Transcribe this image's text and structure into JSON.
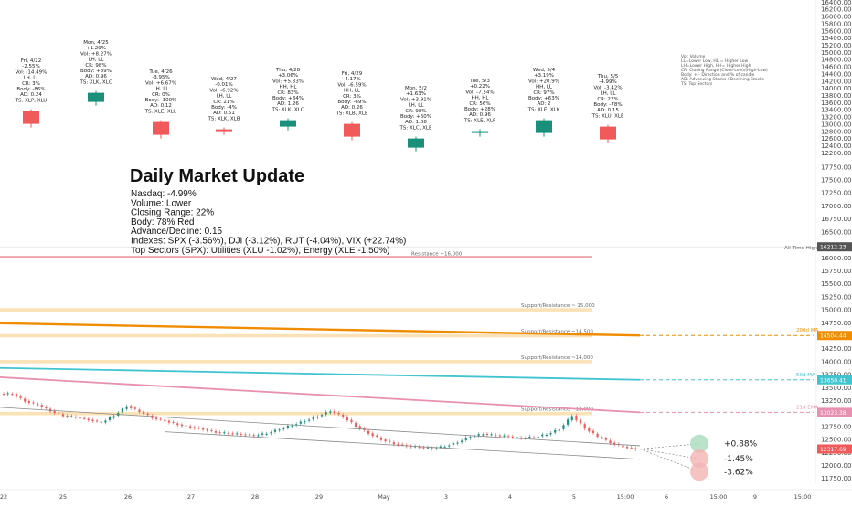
{
  "chart_data": {
    "type": "candlestick",
    "title": "Daily Market Update",
    "lines": [
      "Nasdaq: -4.99%",
      "Volume: Lower",
      "Closing Range: 22%",
      "Body: 78% Red",
      "Advance/Decline: 0.15",
      "Indexes: SPX (-3.56%), DJI (-3.12%), RUT (-4.04%), VIX (+22.74%)",
      "Top Sectors (SPX): Utilities (XLU -1.02%), Energy (XLE -1.50%)"
    ],
    "daily_cards": [
      {
        "lines": [
          "Fri, 4/22",
          "-2.55%",
          "Vol: -14.49%",
          "LH, LL",
          "CR: 3%",
          "Body: -86%",
          "AD: 0.24",
          "TS: XLP, XLU"
        ],
        "bullish": false,
        "size": "large"
      },
      {
        "lines": [
          "Mon, 4/25",
          "+1.29%",
          "Vol: +8.27%",
          "LH, LL",
          "CR: 98%",
          "Body: +89%",
          "AD: 0.96",
          "TS: XLK, XLC"
        ],
        "bullish": true,
        "size": "medium"
      },
      {
        "lines": [
          "Tue, 4/26",
          "-3.95%",
          "Vol: +6.67%",
          "LH, LL",
          "CR: 0%",
          "Body: -100%",
          "AD: 0.12",
          "TS: XLE, XLU"
        ],
        "bullish": false,
        "size": "large"
      },
      {
        "lines": [
          "Wed, 4/27",
          "-0.01%",
          "Vol: -6.92%",
          "LH, LL",
          "CR: 21%",
          "Body: -4%",
          "AD: 0.51",
          "TS: XLK, XLB"
        ],
        "bullish": false,
        "size": "doji"
      },
      {
        "lines": [
          "Thu, 4/28",
          "+3.06%",
          "Vol: +5.33%",
          "HH, HL",
          "CR: 83%",
          "Body: +34%",
          "AD: 1.26",
          "TS: XLK, XLC"
        ],
        "bullish": true,
        "size": "small"
      },
      {
        "lines": [
          "Fri, 4/29",
          "-4.17%",
          "Vol: -6.59%",
          "HH, LL",
          "CR: 3%",
          "Body: -69%",
          "AD: 0.26",
          "TS: XLB, XLE"
        ],
        "bullish": false,
        "size": "large"
      },
      {
        "lines": [
          "Mon, 5/2",
          "+1.63%",
          "Vol: +3.91%",
          "LH, LL",
          "CR: 98%",
          "Body: +60%",
          "AD: 1.08",
          "TS: XLC, XLE"
        ],
        "bullish": true,
        "size": "medium"
      },
      {
        "lines": [
          "Tue, 5/3",
          "+0.22%",
          "Vol: -7.54%",
          "HH, HL",
          "CR: 56%",
          "Body: +28%",
          "AD: 0.96",
          "TS: XLE, XLF"
        ],
        "bullish": true,
        "size": "doji"
      },
      {
        "lines": [
          "Wed, 5/4",
          "+3.19%",
          "Vol: +20.9%",
          "HH, LL",
          "CR: 97%",
          "Body: +63%",
          "AD: 2",
          "TS: XLE, XLK"
        ],
        "bullish": true,
        "size": "large"
      },
      {
        "lines": [
          "Thu, 5/5",
          "-4.99%",
          "Vol: -3.42%",
          "LH, LL",
          "CR: 22%",
          "Body: -78%",
          "AD: 0.15",
          "TS: XLU, XLE"
        ],
        "bullish": false,
        "size": "large"
      }
    ],
    "card_legend": [
      "Vol: Volume",
      "LL=Lower Low, HL = Higher Low",
      "LH=Lower High, HH= Higher High",
      "CR: Closing Range (Close-Low)/(High-Low)",
      "Body: +/- Direction and % of candle",
      "AD: Advancing Stocks / Declining Stocks",
      "TS: Top Sectors"
    ],
    "y_axis": {
      "upper_ticks": [
        "16400.00",
        "16200.00",
        "16000.00",
        "15800.00",
        "15600.00",
        "15400.00",
        "15200.00",
        "15000.00",
        "14800.00",
        "14600.00",
        "14400.00",
        "14200.00",
        "14000.00",
        "13800.00",
        "13600.00",
        "13400.00",
        "13200.00",
        "13000.00",
        "12800.00",
        "12600.00",
        "12400.00",
        "12200.00",
        "12000.00"
      ],
      "lower_ticks": [
        "17750.00",
        "17500.00",
        "17250.00",
        "17000.00",
        "16750.00",
        "16500.00",
        "16250.00",
        "16000.00",
        "15750.00",
        "15500.00",
        "15250.00",
        "15000.00",
        "14750.00",
        "14500.00",
        "14250.00",
        "14000.00",
        "13750.00",
        "13500.00",
        "13250.00",
        "13000.00",
        "12750.00",
        "12500.00",
        "12250.00",
        "12000.00",
        "11750.00"
      ],
      "upper_range": [
        11980,
        16460
      ],
      "lower_range": [
        11640,
        17870
      ]
    },
    "x_axis": {
      "labels": [
        "22",
        "25",
        "26",
        "27",
        "28",
        "29",
        "May",
        "3",
        "4",
        "5",
        "15:00",
        "6",
        "15:00",
        "9",
        "15:00"
      ]
    },
    "levels": [
      {
        "label": "Resistance ~16,000",
        "value": 16000,
        "color": "#e06070"
      },
      {
        "label": "Support/Resistance ~ 15,000",
        "value": 15000,
        "color": "#f5c97a"
      },
      {
        "label": "Support/Resistance ~14,500",
        "value": 14500,
        "color": "#f5c97a"
      },
      {
        "label": "Support/Resistance ~14,000",
        "value": 14000,
        "color": "#f5c97a"
      },
      {
        "label": "Support/Resistance ~13,000",
        "value": 13000,
        "color": "#f5c97a"
      }
    ],
    "moving_averages": [
      {
        "name": "200d MA",
        "value": 14504.44,
        "tag": "14504.44",
        "color": "#f08c00"
      },
      {
        "name": "50d MA",
        "value": 13650.41,
        "tag": "13650.41",
        "color": "#40c4d0"
      },
      {
        "name": "21d EMA",
        "value": 13023.38,
        "tag": "13023.38",
        "color": "#e890b0"
      }
    ],
    "all_time_high": {
      "label": "All Time High",
      "value": 16212.23,
      "tag": "16212.23"
    },
    "last_price": {
      "value": 12317.69,
      "tag": "12317.69"
    },
    "projections": [
      "+0.88%",
      "-1.45%",
      "-3.62%"
    ],
    "candles": [
      {
        "close": 13380
      },
      {
        "close": 13240
      },
      {
        "close": 13170
      },
      {
        "close": 13050
      },
      {
        "close": 12960
      },
      {
        "close": 12930
      },
      {
        "close": 12880
      },
      {
        "close": 12830
      },
      {
        "close": 12960
      },
      {
        "close": 13150
      },
      {
        "close": 13040
      },
      {
        "close": 12920
      },
      {
        "close": 12860
      },
      {
        "close": 12790
      },
      {
        "close": 12740
      },
      {
        "close": 12700
      },
      {
        "close": 12640
      },
      {
        "close": 12620
      },
      {
        "close": 12600
      },
      {
        "close": 12580
      },
      {
        "close": 12620
      },
      {
        "close": 12700
      },
      {
        "close": 12780
      },
      {
        "close": 12860
      },
      {
        "close": 12950
      },
      {
        "close": 13050
      },
      {
        "close": 12940
      },
      {
        "close": 12760
      },
      {
        "close": 12620
      },
      {
        "close": 12500
      },
      {
        "close": 12420
      },
      {
        "close": 12380
      },
      {
        "close": 12350
      },
      {
        "close": 12330
      },
      {
        "close": 12370
      },
      {
        "close": 12450
      },
      {
        "close": 12560
      },
      {
        "close": 12610
      },
      {
        "close": 12580
      },
      {
        "close": 12560
      },
      {
        "close": 12530
      },
      {
        "close": 12550
      },
      {
        "close": 12600
      },
      {
        "close": 12700
      },
      {
        "close": 12960
      },
      {
        "close": 12720
      },
      {
        "close": 12560
      },
      {
        "close": 12440
      },
      {
        "close": 12360
      },
      {
        "close": 12317.69
      }
    ]
  }
}
